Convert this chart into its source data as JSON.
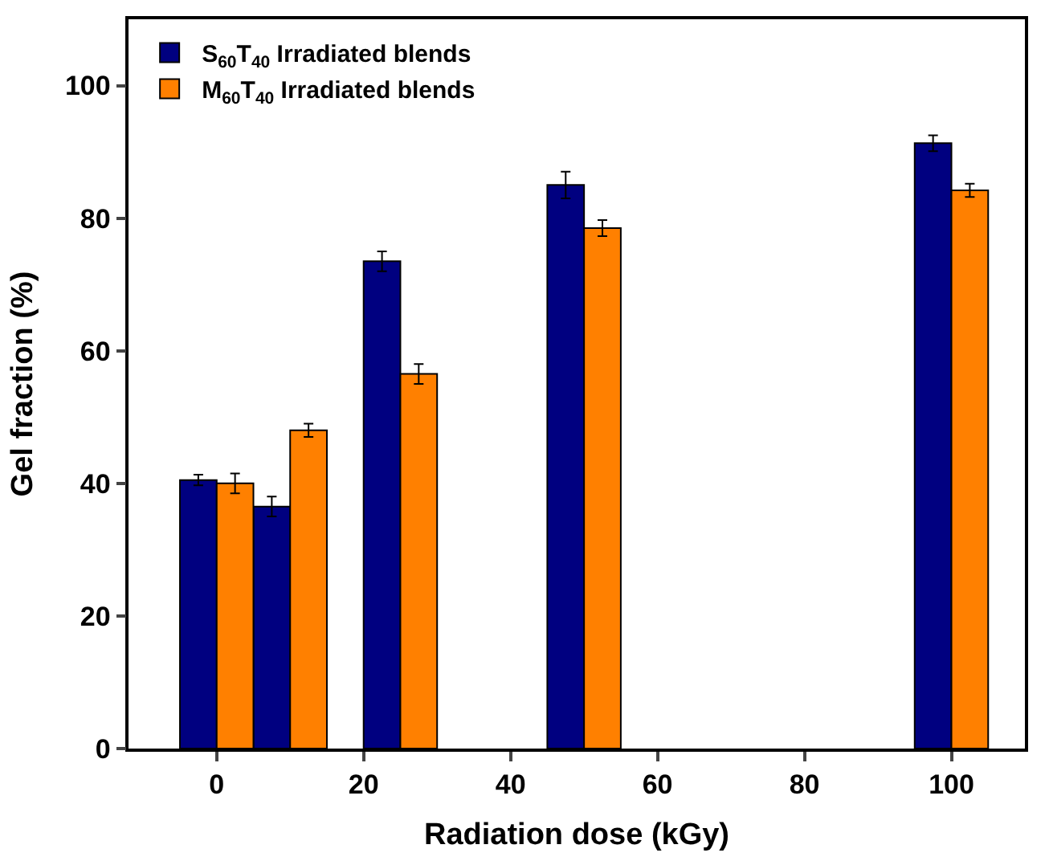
{
  "chart_data": {
    "type": "bar",
    "xlabel": "Radiation dose (kGy)",
    "ylabel": "Gel fraction (%)",
    "x": [
      0,
      10,
      25,
      50,
      100
    ],
    "series": [
      {
        "name": "S$_{60}$T$_{40}$ Irradiated blends",
        "color": "#000080",
        "values": [
          40.5,
          36.5,
          73.5,
          85,
          91.3
        ],
        "errors": [
          0.8,
          1.5,
          1.5,
          2,
          1.2
        ]
      },
      {
        "name": "M$_{60}$T$_{40}$ Irradiated blends",
        "color": "#ff8000",
        "values": [
          40,
          48,
          56.5,
          78.5,
          84.2
        ],
        "errors": [
          1.5,
          1,
          1.5,
          1.2,
          1
        ]
      }
    ],
    "xlim": [
      -12,
      110
    ],
    "xticks": [
      0,
      20,
      40,
      60,
      80,
      100
    ],
    "ylim": [
      0,
      110
    ],
    "yticks": [
      0,
      20,
      40,
      60,
      80,
      100
    ],
    "grid": false,
    "legend": "top left"
  }
}
